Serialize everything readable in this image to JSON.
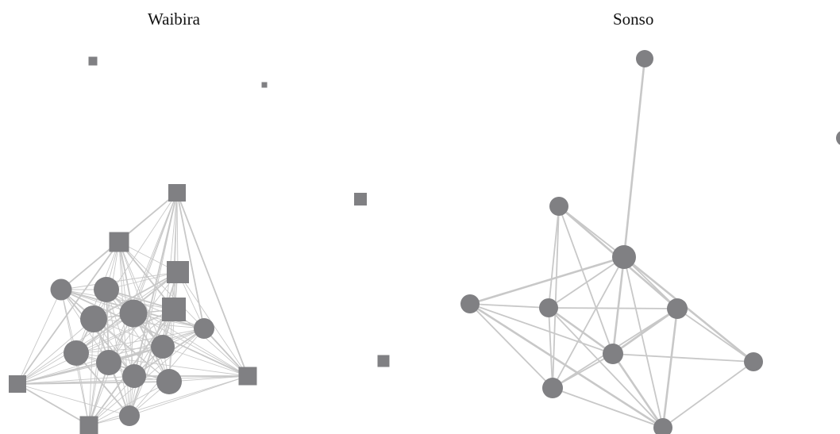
{
  "panels": {
    "left": {
      "title": "Waibira"
    },
    "right": {
      "title": "Sonso"
    }
  },
  "colors": {
    "node": "#808083",
    "edge": "#c8c8c8",
    "background": "#ffffff"
  },
  "networks": {
    "waibira": {
      "node_count": 22,
      "node_shapes": [
        "circle",
        "square"
      ]
    },
    "sonso": {
      "node_count": 10,
      "node_shapes": [
        "circle"
      ]
    }
  }
}
